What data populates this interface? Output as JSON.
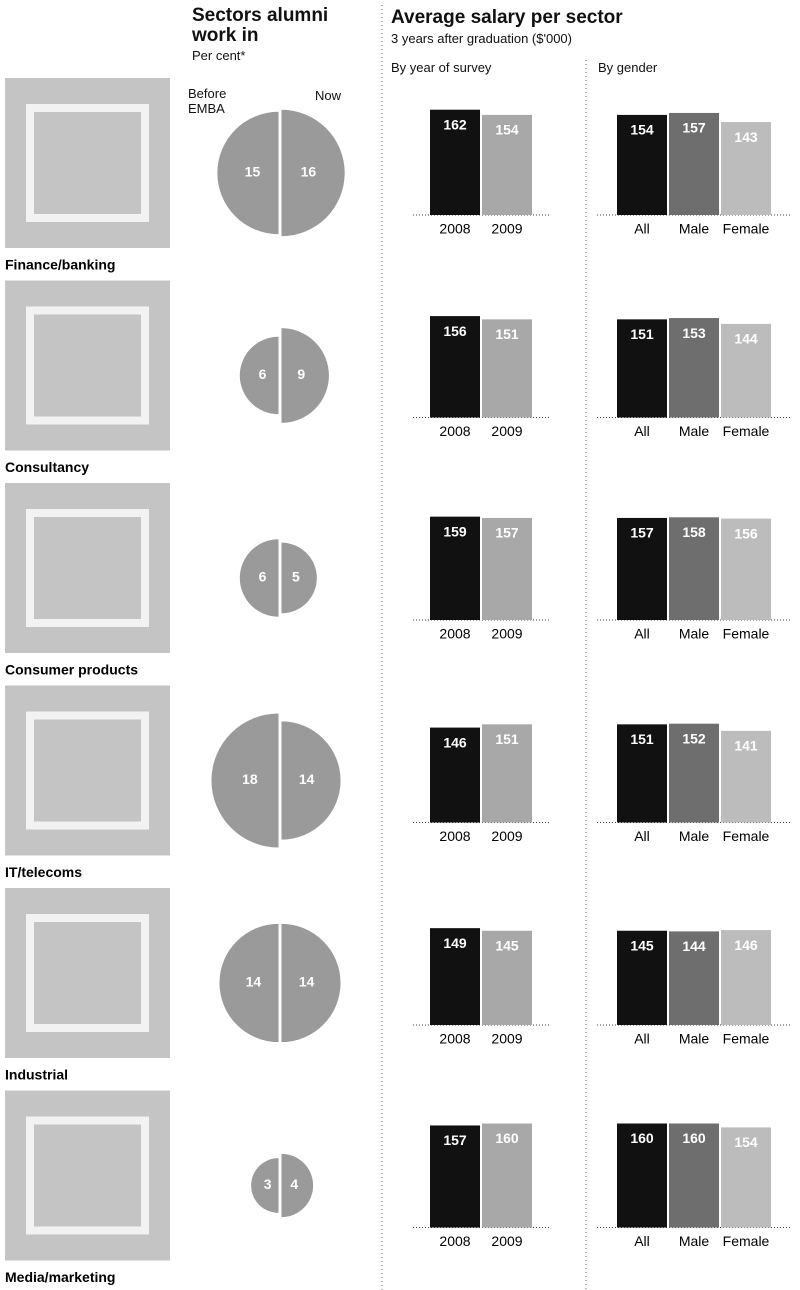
{
  "title_left": "Sectors alumni work in",
  "subtitle_left": "Per cent*",
  "before_label": "Before EMBA",
  "now_label": "Now",
  "title_right": "Average salary per sector",
  "subtitle_right": "3 years after graduation ($'000)",
  "by_year_label": "By year of survey",
  "by_gender_label": "By gender",
  "year_categories": [
    "2008",
    "2009"
  ],
  "gender_categories": [
    "All",
    "Male",
    "Female"
  ],
  "year_colors": [
    "#111111",
    "#a8a8a8"
  ],
  "gender_colors": [
    "#111111",
    "#6e6e6e",
    "#bcbcbc"
  ],
  "share_color": "#9a9a9a",
  "sectors": [
    {
      "name": "Finance/banking",
      "share": [
        15,
        16
      ],
      "by_year": [
        162,
        154
      ],
      "by_gender": [
        154,
        157,
        143
      ]
    },
    {
      "name": "Consultancy",
      "share": [
        6,
        9
      ],
      "by_year": [
        156,
        151
      ],
      "by_gender": [
        151,
        153,
        144
      ]
    },
    {
      "name": "Consumer products",
      "share": [
        6,
        5
      ],
      "by_year": [
        159,
        157
      ],
      "by_gender": [
        157,
        158,
        156
      ]
    },
    {
      "name": "IT/telecoms",
      "share": [
        18,
        14
      ],
      "by_year": [
        146,
        151
      ],
      "by_gender": [
        151,
        152,
        141
      ]
    },
    {
      "name": "Industrial",
      "share": [
        14,
        14
      ],
      "by_year": [
        149,
        145
      ],
      "by_gender": [
        145,
        144,
        146
      ]
    },
    {
      "name": "Media/marketing",
      "share": [
        3,
        4
      ],
      "by_year": [
        157,
        160
      ],
      "by_gender": [
        160,
        160,
        154
      ]
    }
  ]
}
